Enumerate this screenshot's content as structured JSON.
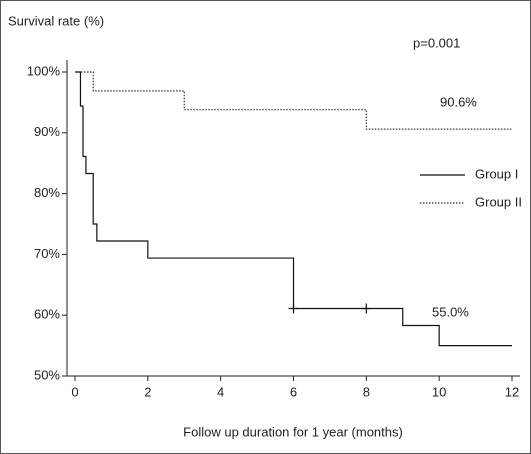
{
  "chart_data": {
    "type": "line",
    "step": "post",
    "y_label": "Survival rate (%)",
    "x_label": "Follow up duration for 1 year (months)",
    "annotations": [
      "p=0.001",
      "90.6%",
      "55.0%"
    ],
    "xlim": [
      0,
      12
    ],
    "xticks": [
      0,
      2,
      4,
      6,
      8,
      10,
      12
    ],
    "ylim": [
      50,
      100
    ],
    "yticks": [
      {
        "value": 50,
        "label": "50%"
      },
      {
        "value": 60,
        "label": "60%"
      },
      {
        "value": 70,
        "label": "70%"
      },
      {
        "value": 80,
        "label": "80%"
      },
      {
        "value": 90,
        "label": "90%"
      },
      {
        "value": 100,
        "label": "100%"
      }
    ],
    "legend": "right",
    "series": [
      {
        "name": "Group I",
        "color": "#111111",
        "dash": "solid",
        "x": [
          0,
          0.15,
          0.22,
          0.3,
          0.5,
          0.6,
          2,
          6,
          9,
          10,
          12
        ],
        "values": [
          100,
          94.4,
          86.1,
          83.3,
          75,
          72.2,
          69.4,
          61.1,
          58.3,
          55.0,
          55.0
        ],
        "censored": {
          "x": [
            6,
            8
          ],
          "values": [
            61.1,
            61.1
          ]
        }
      },
      {
        "name": "Group II",
        "color": "#333333",
        "dash": "dotted",
        "x": [
          0,
          0.5,
          3,
          8,
          12
        ],
        "values": [
          100,
          96.9,
          93.8,
          90.6,
          90.6
        ]
      }
    ]
  }
}
